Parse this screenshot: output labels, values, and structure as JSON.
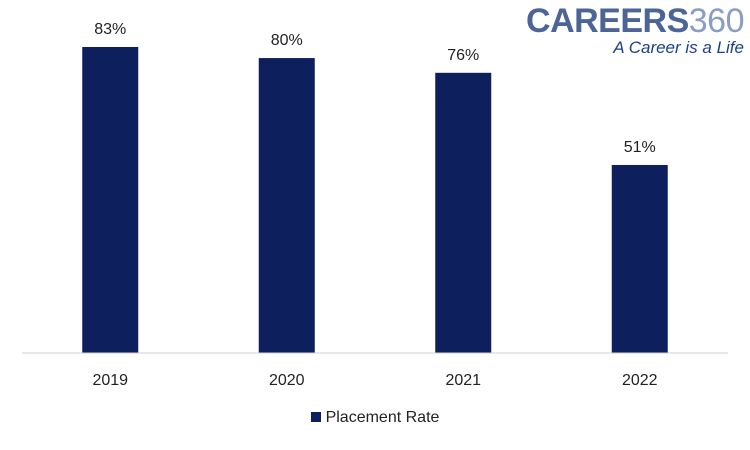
{
  "logo": {
    "brand_word": "CAREERS",
    "brand_number": "360",
    "tagline": "A Career is a Life",
    "brand_word_color": "#4d6496",
    "brand_number_color": "#8a9dc2"
  },
  "chart_data": {
    "type": "bar",
    "categories": [
      "2019",
      "2020",
      "2021",
      "2022"
    ],
    "series": [
      {
        "name": "Placement Rate",
        "values": [
          83,
          80,
          76,
          51
        ],
        "labels": [
          "83%",
          "80%",
          "76%",
          "51%"
        ],
        "color": "#0d1f5c"
      }
    ],
    "ylim": [
      0,
      83
    ],
    "grid": false,
    "legend_position": "bottom",
    "axis_line_color": "#d0d0d0"
  }
}
